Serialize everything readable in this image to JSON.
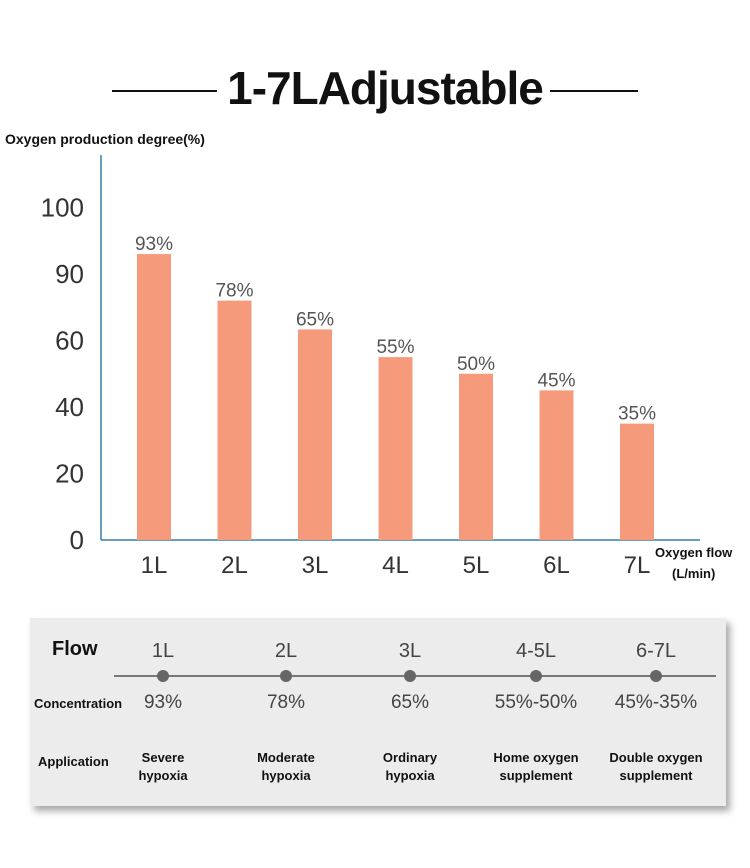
{
  "header": {
    "title": "1-7LAdjustable"
  },
  "chart_data": {
    "type": "bar",
    "ylabel": "Oxygen production degree(%)",
    "xlabel": "Oxygen flow (L/min)",
    "xlabel_lines": [
      "Oxygen flow",
      "(L/min)"
    ],
    "y_tick_labels": [
      "0",
      "20",
      "40",
      "60",
      "90",
      "100"
    ],
    "categories": [
      "1L",
      "2L",
      "3L",
      "4L",
      "5L",
      "6L",
      "7L"
    ],
    "values": [
      93,
      78,
      65,
      55,
      50,
      45,
      35
    ],
    "data_labels": [
      "93%",
      "78%",
      "65%",
      "55%",
      "50%",
      "45%",
      "35%"
    ],
    "bar_color": "#f59b7c",
    "axis_color": "#3a7fa8",
    "grid": false,
    "legend": "none"
  },
  "table": {
    "row_labels": {
      "flow": "Flow",
      "concentration": "Concentration",
      "application": "Application"
    },
    "columns": [
      {
        "flow": "1L",
        "concentration": "93%",
        "application": [
          "Severe",
          "hypoxia"
        ]
      },
      {
        "flow": "2L",
        "concentration": "78%",
        "application": [
          "Moderate",
          "hypoxia"
        ]
      },
      {
        "flow": "3L",
        "concentration": "65%",
        "application": [
          "Ordinary",
          "hypoxia"
        ]
      },
      {
        "flow": "4-5L",
        "concentration": "55%-50%",
        "application": [
          "Home oxygen",
          "supplement"
        ]
      },
      {
        "flow": "6-7L",
        "concentration": "45%-35%",
        "application": [
          "Double oxygen",
          "supplement"
        ]
      }
    ]
  }
}
